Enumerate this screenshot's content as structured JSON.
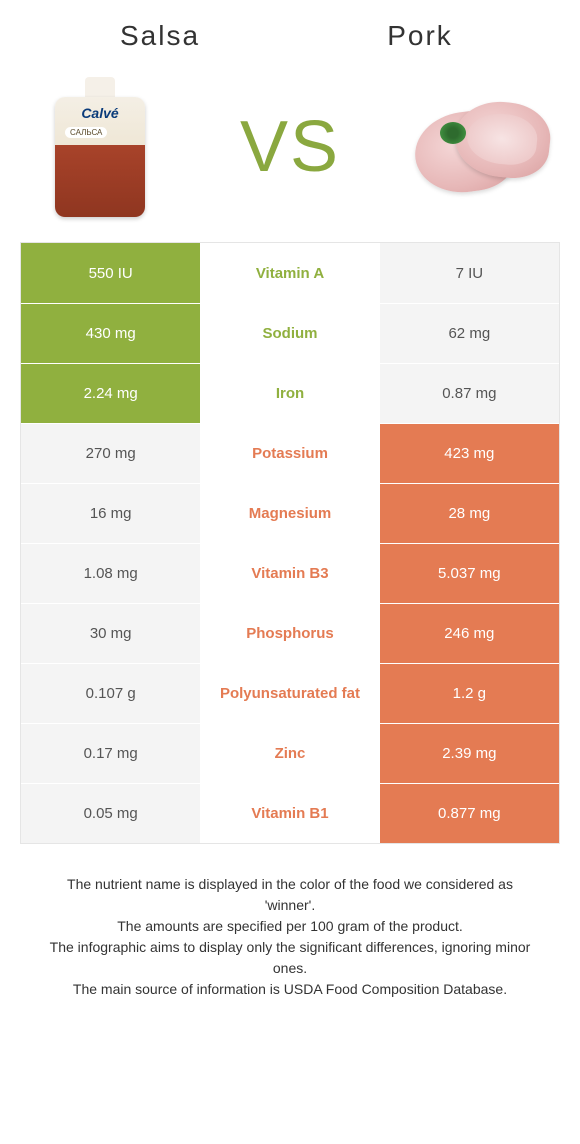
{
  "colors": {
    "salsa": "#90b03f",
    "pork": "#e47b53",
    "neutral_bg": "#f4f4f4",
    "neutral_text": "#555555"
  },
  "header": {
    "left_title": "Salsa",
    "right_title": "Pork",
    "vs_label": "VS"
  },
  "table": {
    "rows": [
      {
        "nutrient": "Vitamin A",
        "left": "550 IU",
        "right": "7 IU",
        "winner": "left"
      },
      {
        "nutrient": "Sodium",
        "left": "430 mg",
        "right": "62 mg",
        "winner": "left"
      },
      {
        "nutrient": "Iron",
        "left": "2.24 mg",
        "right": "0.87 mg",
        "winner": "left"
      },
      {
        "nutrient": "Potassium",
        "left": "270 mg",
        "right": "423 mg",
        "winner": "right"
      },
      {
        "nutrient": "Magnesium",
        "left": "16 mg",
        "right": "28 mg",
        "winner": "right"
      },
      {
        "nutrient": "Vitamin B3",
        "left": "1.08 mg",
        "right": "5.037 mg",
        "winner": "right"
      },
      {
        "nutrient": "Phosphorus",
        "left": "30 mg",
        "right": "246 mg",
        "winner": "right"
      },
      {
        "nutrient": "Polyunsaturated fat",
        "left": "0.107 g",
        "right": "1.2 g",
        "winner": "right"
      },
      {
        "nutrient": "Zinc",
        "left": "0.17 mg",
        "right": "2.39 mg",
        "winner": "right"
      },
      {
        "nutrient": "Vitamin B1",
        "left": "0.05 mg",
        "right": "0.877 mg",
        "winner": "right"
      }
    ]
  },
  "footer": {
    "line1": "The nutrient name is displayed in the color of the food we considered as 'winner'.",
    "line2": "The amounts are specified per 100 gram of the product.",
    "line3": "The infographic aims to display only the significant differences, ignoring minor ones.",
    "line4": "The main source of information is USDA Food Composition Database."
  }
}
